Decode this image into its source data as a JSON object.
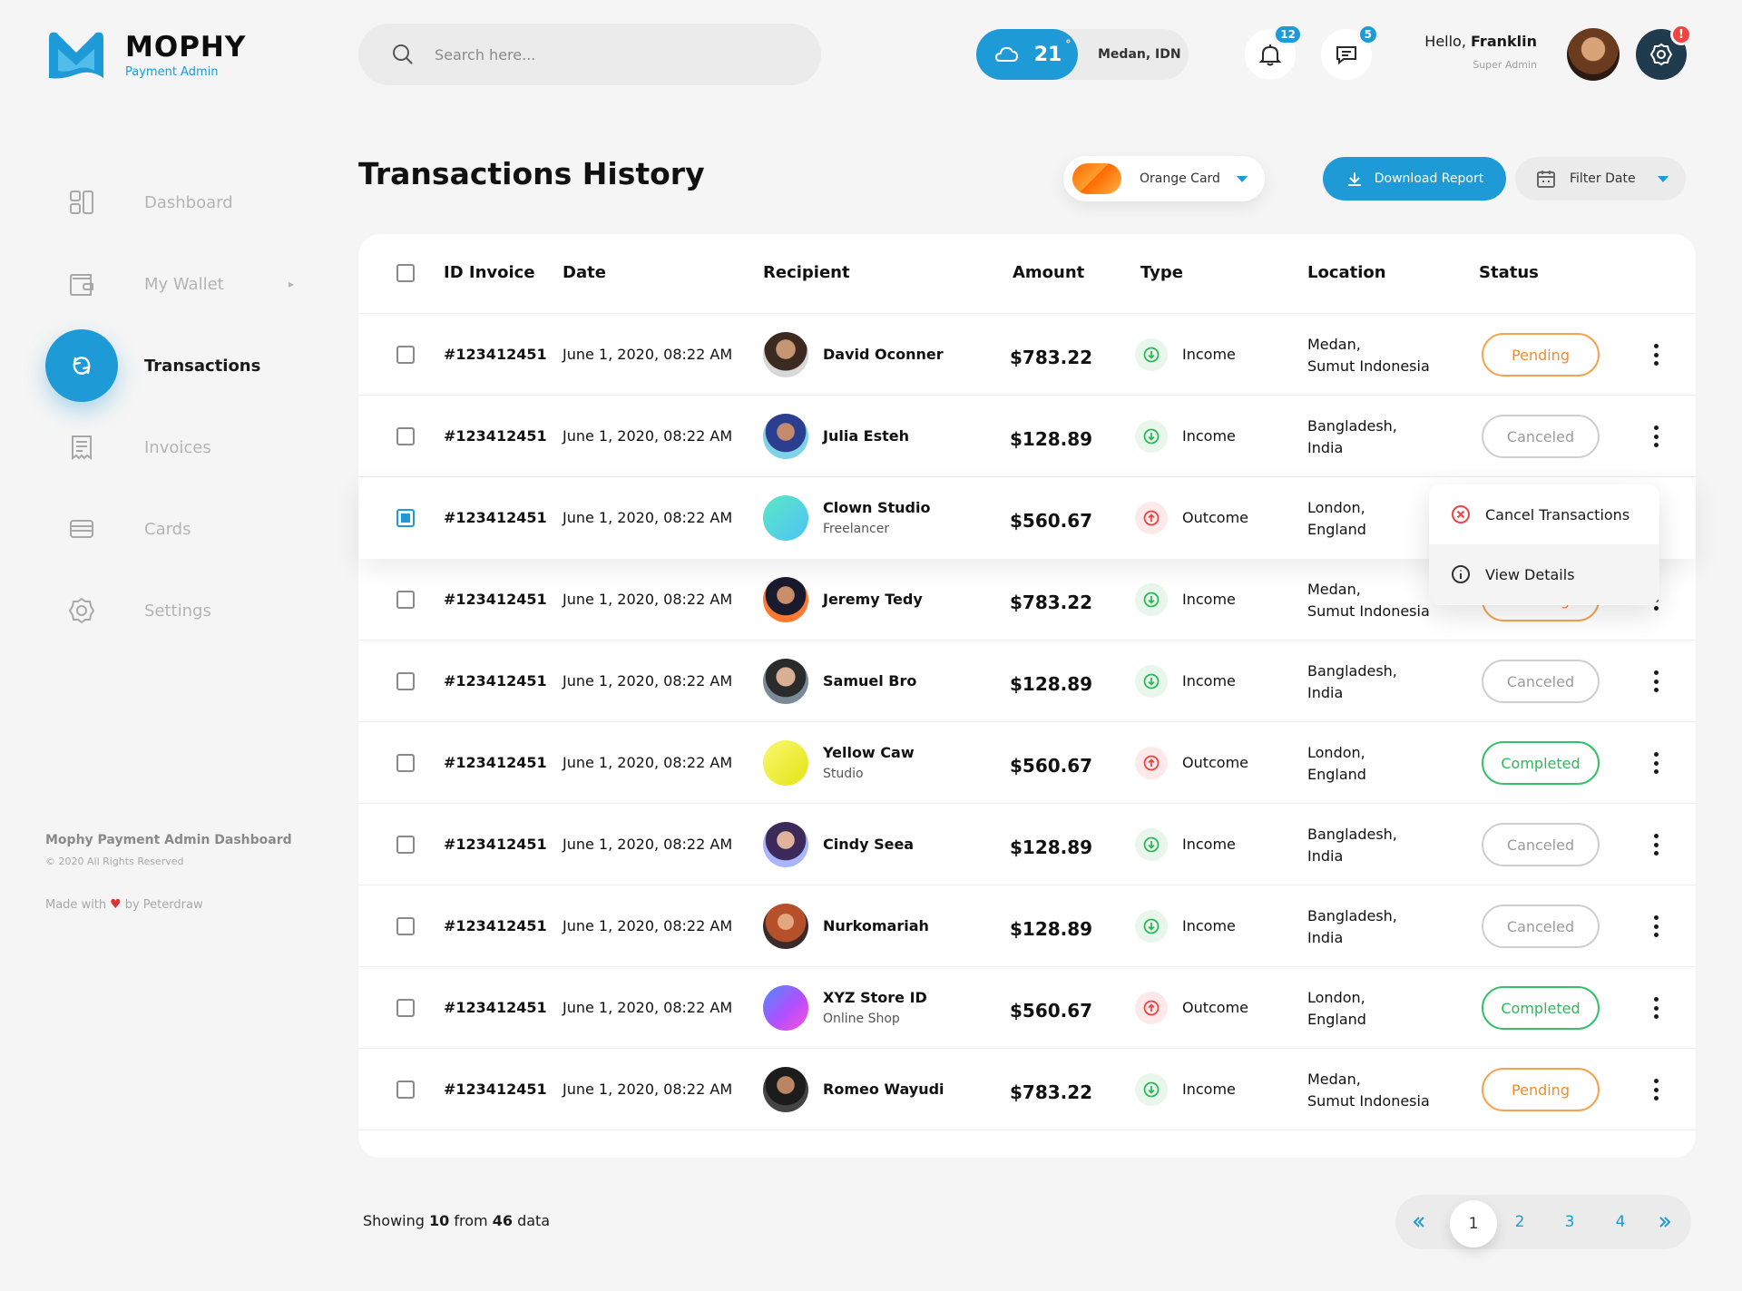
{
  "brand": {
    "title": "MOPHY",
    "subtitle": "Payment Admin",
    "color": "#1e9bd7"
  },
  "search": {
    "placeholder": "Search here..."
  },
  "weather": {
    "temp": "21",
    "degree": "°",
    "city": "Medan, IDN",
    "icon": "cloud-sun-icon"
  },
  "notifications": {
    "count": "12"
  },
  "messages": {
    "count": "5"
  },
  "user": {
    "greeting": "Hello,",
    "name": "Franklin",
    "role": "Super Admin"
  },
  "settings": {
    "alert": "!"
  },
  "sidebar": {
    "items": [
      {
        "label": "Dashboard",
        "icon": "dashboard-icon"
      },
      {
        "label": "My Wallet",
        "icon": "wallet-icon",
        "has_submenu": true
      },
      {
        "label": "Transactions",
        "icon": "transactions-icon",
        "active": true
      },
      {
        "label": "Invoices",
        "icon": "invoice-icon"
      },
      {
        "label": "Cards",
        "icon": "card-icon"
      },
      {
        "label": "Settings",
        "icon": "settings-icon"
      }
    ],
    "footer": {
      "title": "Mophy Payment Admin Dashboard",
      "copyright": "© 2020 All Rights Reserved",
      "made_prefix": "Made with",
      "made_suffix": "by Peterdraw"
    }
  },
  "page": {
    "title": "Transactions History",
    "card_select": "Orange Card",
    "download_label": "Download Report",
    "filter_label": "Filter Date"
  },
  "table": {
    "columns": [
      "ID Invoice",
      "Date",
      "Recipient",
      "Amount",
      "Type",
      "Location",
      "Status"
    ],
    "rows": [
      {
        "id": "#123412451",
        "date": "June 1, 2020, 08:22 AM",
        "name": "David Oconner",
        "sub": "",
        "amount": "$783.22",
        "type": "Income",
        "loc1": "Medan,",
        "loc2": "Sumut Indonesia",
        "status": "Pending",
        "checked": false
      },
      {
        "id": "#123412451",
        "date": "June 1, 2020, 08:22 AM",
        "name": "Julia Esteh",
        "sub": "",
        "amount": "$128.89",
        "type": "Income",
        "loc1": "Bangladesh,",
        "loc2": "India",
        "status": "Canceled",
        "checked": false
      },
      {
        "id": "#123412451",
        "date": "June 1, 2020, 08:22 AM",
        "name": "Clown Studio",
        "sub": "Freelancer",
        "amount": "$560.67",
        "type": "Outcome",
        "loc1": "London,",
        "loc2": "England",
        "status": "",
        "checked": true
      },
      {
        "id": "#123412451",
        "date": "June 1, 2020, 08:22 AM",
        "name": "Jeremy Tedy",
        "sub": "",
        "amount": "$783.22",
        "type": "Income",
        "loc1": "Medan,",
        "loc2": "Sumut Indonesia",
        "status": "Pending",
        "checked": false
      },
      {
        "id": "#123412451",
        "date": "June 1, 2020, 08:22 AM",
        "name": "Samuel Bro",
        "sub": "",
        "amount": "$128.89",
        "type": "Income",
        "loc1": "Bangladesh,",
        "loc2": "India",
        "status": "Canceled",
        "checked": false
      },
      {
        "id": "#123412451",
        "date": "June 1, 2020, 08:22 AM",
        "name": "Yellow Caw",
        "sub": "Studio",
        "amount": "$560.67",
        "type": "Outcome",
        "loc1": "London,",
        "loc2": "England",
        "status": "Completed",
        "checked": false
      },
      {
        "id": "#123412451",
        "date": "June 1, 2020, 08:22 AM",
        "name": "Cindy Seea",
        "sub": "",
        "amount": "$128.89",
        "type": "Income",
        "loc1": "Bangladesh,",
        "loc2": "India",
        "status": "Canceled",
        "checked": false
      },
      {
        "id": "#123412451",
        "date": "June 1, 2020, 08:22 AM",
        "name": "Nurkomariah",
        "sub": "",
        "amount": "$128.89",
        "type": "Income",
        "loc1": "Bangladesh,",
        "loc2": "India",
        "status": "Canceled",
        "checked": false
      },
      {
        "id": "#123412451",
        "date": "June 1, 2020, 08:22 AM",
        "name": "XYZ Store ID",
        "sub": "Online Shop",
        "amount": "$560.67",
        "type": "Outcome",
        "loc1": "London,",
        "loc2": "England",
        "status": "Completed",
        "checked": false
      },
      {
        "id": "#123412451",
        "date": "June 1, 2020, 08:22 AM",
        "name": "Romeo Wayudi",
        "sub": "",
        "amount": "$783.22",
        "type": "Income",
        "loc1": "Medan,",
        "loc2": "Sumut Indonesia",
        "status": "Pending",
        "checked": false
      }
    ]
  },
  "context_menu": {
    "cancel": "Cancel Transactions",
    "view": "View Details"
  },
  "footer": {
    "showing_prefix": "Showing",
    "showing_count": "10",
    "showing_mid": "from",
    "showing_total": "46",
    "showing_suffix": "data"
  },
  "pagination": {
    "pages": [
      "1",
      "2",
      "3",
      "4"
    ],
    "current": "1"
  },
  "colors": {
    "accent": "#1e9bd7",
    "pending": "#f28c28",
    "completed": "#2fb859",
    "canceled": "#9b9b9b",
    "outcome": "#ef4444",
    "heart": "#e03131"
  }
}
